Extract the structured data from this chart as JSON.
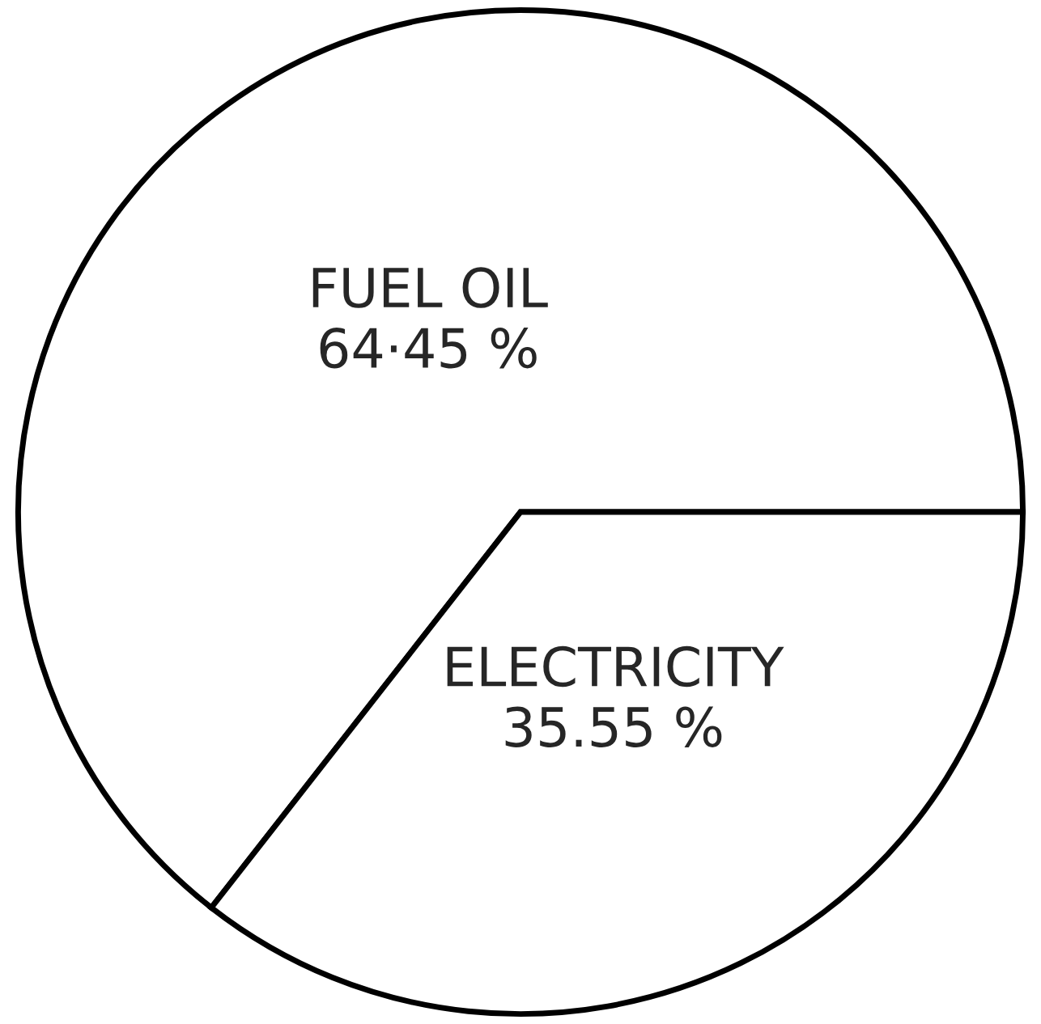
{
  "chart_data": {
    "type": "pie",
    "categories": [
      "FUEL OIL",
      "ELECTRICITY"
    ],
    "values": [
      64.45,
      35.55
    ],
    "value_labels": [
      "64·45 %",
      "35.55 %"
    ],
    "colors": [
      "#ffffff",
      "#ffffff"
    ]
  }
}
